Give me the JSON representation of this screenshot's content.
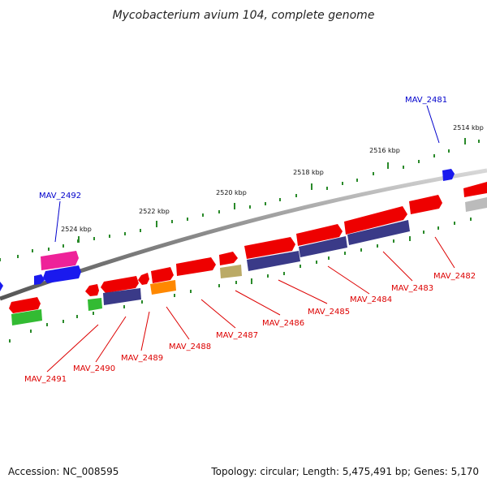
{
  "title": "Mycobacterium avium 104, complete genome",
  "footer": {
    "accession": "Accession: NC_008595",
    "summary": "Topology: circular; Length: 5,475,491 bp; Genes: 5,170"
  },
  "colors": {
    "backbone": "#8a8a8a",
    "ticks": "#2a8a2a",
    "label_top": "#0000cc",
    "label_bottom": "#dd0000",
    "red": "#ee0000",
    "blue": "#1a1aee",
    "magenta": "#ee2299",
    "green": "#33bb33",
    "navy": "#3a3a88",
    "orange": "#ff8800",
    "khaki": "#bbaa66",
    "gray": "#bbbbbb"
  },
  "ruler": {
    "unit": "kbp",
    "major_ticks": [
      {
        "label": "2514 kbp",
        "pos": 2514
      },
      {
        "label": "2516 kbp",
        "pos": 2516
      },
      {
        "label": "2518 kbp",
        "pos": 2518
      },
      {
        "label": "2520 kbp",
        "pos": 2520
      },
      {
        "label": "2522 kbp",
        "pos": 2522
      },
      {
        "label": "2524 kbp",
        "pos": 2524
      }
    ]
  },
  "gene_labels": {
    "top": [
      "MAV_2481",
      "MAV_2492"
    ],
    "bottom": [
      "MAV_2482",
      "MAV_2483",
      "MAV_2484",
      "MAV_2485",
      "MAV_2486",
      "MAV_2487",
      "MAV_2488",
      "MAV_2489",
      "MAV_2490",
      "MAV_2491"
    ]
  }
}
